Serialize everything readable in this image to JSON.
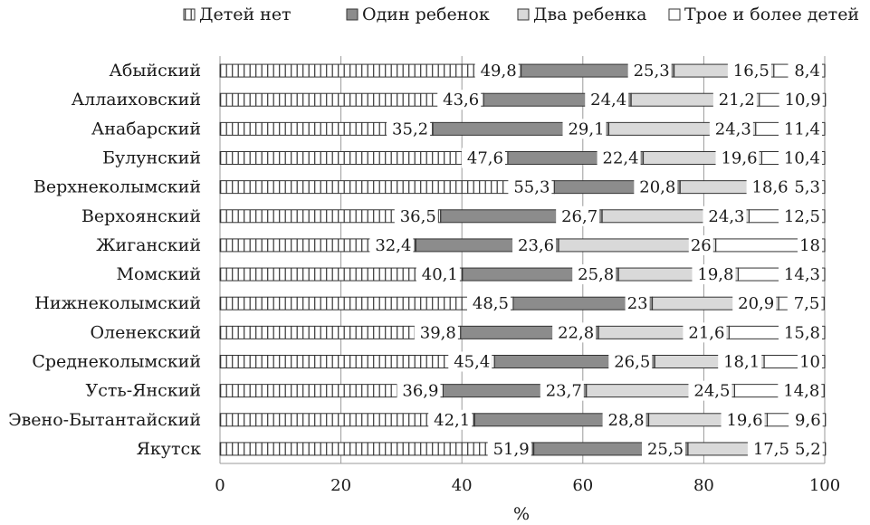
{
  "chart_data": {
    "type": "bar",
    "orientation": "horizontal",
    "stacked": true,
    "title": "",
    "xlabel": "%",
    "ylabel": "",
    "xlim": [
      0,
      100
    ],
    "xticks": [
      0,
      20,
      40,
      60,
      80,
      100
    ],
    "grid": "vertical",
    "legend": "top",
    "categories": [
      "Абыйский",
      "Аллаиховский",
      "Анабарский",
      "Булунский",
      "Верхнеколымский",
      "Верхоянский",
      "Жиганский",
      "Момский",
      "Нижнеколымский",
      "Оленекский",
      "Среднеколымский",
      "Усть-Янский",
      "Эвено-Бытантайский",
      "Якутск"
    ],
    "series": [
      {
        "name": "Детей нет",
        "pattern": "vertical-hatch",
        "values": [
          49.8,
          43.6,
          35.2,
          47.6,
          55.3,
          36.5,
          32.4,
          40.1,
          48.5,
          39.8,
          45.4,
          36.9,
          42.1,
          51.9
        ],
        "labels": [
          "49,8",
          "43,6",
          "35,2",
          "47,6",
          "55,3",
          "36,5",
          "32,4",
          "40,1",
          "48,5",
          "39,8",
          "45,4",
          "36,9",
          "42,1",
          "51,9"
        ]
      },
      {
        "name": "Один ребенок",
        "color": "#8c8c8c",
        "values": [
          25.3,
          24.4,
          29.1,
          22.4,
          20.8,
          26.7,
          23.6,
          25.8,
          23,
          22.8,
          26.5,
          23.7,
          28.8,
          25.5
        ],
        "labels": [
          "25,3",
          "24,4",
          "29,1",
          "22,4",
          "20,8",
          "26,7",
          "23,6",
          "25,8",
          "23",
          "22,8",
          "26,5",
          "23,7",
          "28,8",
          "25,5"
        ]
      },
      {
        "name": "Два ребенка",
        "color": "#d9d9d9",
        "values": [
          16.5,
          21.2,
          24.3,
          19.6,
          18.6,
          24.3,
          26,
          19.8,
          20.9,
          21.6,
          18.1,
          24.5,
          19.6,
          17.5
        ],
        "labels": [
          "16,5",
          "21,2",
          "24,3",
          "19,6",
          "18,6",
          "24,3",
          "26",
          "19,8",
          "20,9",
          "21,6",
          "18,1",
          "24,5",
          "19,6",
          "17,5"
        ]
      },
      {
        "name": "Трое и более детей",
        "color": "#ffffff",
        "values": [
          8.4,
          10.9,
          11.4,
          10.4,
          5.3,
          12.5,
          18,
          14.3,
          7.5,
          15.8,
          10,
          14.8,
          9.6,
          5.2
        ],
        "labels": [
          "8,4",
          "10,9",
          "11,4",
          "10,4",
          "5,3",
          "12,5",
          "18",
          "14,3",
          "7,5",
          "15,8",
          "10",
          "14,8",
          "9,6",
          "5,2"
        ]
      }
    ]
  }
}
